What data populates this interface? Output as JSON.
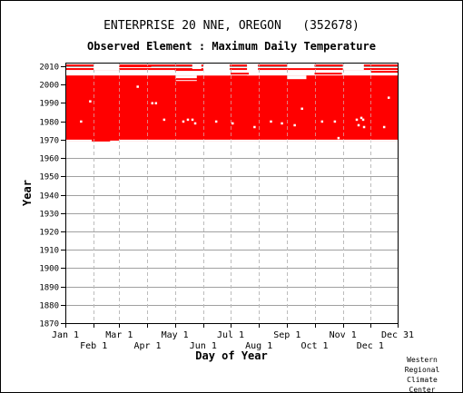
{
  "chart_data": {
    "type": "heatmap",
    "title": "ENTERPRISE 20 NNE, OREGON   (352678)",
    "subtitle": "Observed Element : Maximum Daily Temperature",
    "xlabel": "Day of Year",
    "ylabel": "Year",
    "xlim": [
      1,
      365
    ],
    "ylim": [
      1870,
      2012
    ],
    "x_ticks_top_row": [
      {
        "label": "Jan 1",
        "day": 1
      },
      {
        "label": "Mar 1",
        "day": 60
      },
      {
        "label": "May 1",
        "day": 121
      },
      {
        "label": "Jul 1",
        "day": 182
      },
      {
        "label": "Sep 1",
        "day": 244
      },
      {
        "label": "Nov 1",
        "day": 305
      },
      {
        "label": "Dec 31",
        "day": 365
      }
    ],
    "x_ticks_bottom_row": [
      {
        "label": "Feb 1",
        "day": 32
      },
      {
        "label": "Apr 1",
        "day": 91
      },
      {
        "label": "Jun 1",
        "day": 152
      },
      {
        "label": "Aug 1",
        "day": 213
      },
      {
        "label": "Oct 1",
        "day": 274
      },
      {
        "label": "Dec 1",
        "day": 335
      }
    ],
    "y_ticks": [
      1870,
      1880,
      1890,
      1900,
      1910,
      1920,
      1930,
      1940,
      1950,
      1960,
      1970,
      1980,
      1990,
      2000,
      2010
    ],
    "grid": true,
    "data_color": "#ff0000",
    "grid_color": "#a0a0a0",
    "blocks": [
      {
        "x0": 1,
        "x1": 365,
        "y0": 1969,
        "y1": 2005
      },
      {
        "x0": 1,
        "x1": 365,
        "y0": 2008,
        "y1": 2009
      },
      {
        "x0": 1,
        "x1": 365,
        "y0": 2010,
        "y1": 2011
      }
    ],
    "gaps": [
      {
        "x0": 1,
        "x1": 30,
        "y0": 1969,
        "y1": 1970
      },
      {
        "x0": 50,
        "x1": 365,
        "y0": 1969,
        "y1": 1970
      },
      {
        "x0": 32,
        "x1": 60,
        "y0": 2008,
        "y1": 2011
      },
      {
        "x0": 140,
        "x1": 150,
        "y0": 2005,
        "y1": 2011
      },
      {
        "x0": 200,
        "x1": 212,
        "y0": 2005,
        "y1": 2011
      },
      {
        "x0": 122,
        "x1": 145,
        "y0": 2002,
        "y1": 2005
      },
      {
        "x0": 152,
        "x1": 181,
        "y0": 2005,
        "y1": 2011
      },
      {
        "x0": 244,
        "x1": 274,
        "y0": 2009,
        "y1": 2011
      },
      {
        "x0": 244,
        "x1": 265,
        "y0": 2003,
        "y1": 2005
      },
      {
        "x0": 305,
        "x1": 328,
        "y0": 2008,
        "y1": 2011
      }
    ],
    "extra_lines": [
      {
        "x0": 32,
        "x1": 60,
        "y": 1970
      },
      {
        "x0": 122,
        "x1": 146,
        "y": 2003
      },
      {
        "x0": 274,
        "x1": 304,
        "y": 2006
      },
      {
        "x0": 336,
        "x1": 365,
        "y": 2007
      },
      {
        "x0": 182,
        "x1": 202,
        "y": 2006
      },
      {
        "x0": 60,
        "x1": 81,
        "y": 2000
      },
      {
        "x0": 60,
        "x1": 95,
        "y": 2010
      },
      {
        "x0": 121,
        "x1": 152,
        "y": 2008
      }
    ],
    "holes": [
      {
        "day": 28,
        "year": 1991
      },
      {
        "day": 80,
        "year": 1999
      },
      {
        "day": 96,
        "year": 1990
      },
      {
        "day": 100,
        "year": 1990
      },
      {
        "day": 109,
        "year": 1981
      },
      {
        "day": 130,
        "year": 1980
      },
      {
        "day": 135,
        "year": 1981
      },
      {
        "day": 140,
        "year": 1981
      },
      {
        "day": 143,
        "year": 1979
      },
      {
        "day": 166,
        "year": 1980
      },
      {
        "day": 184,
        "year": 1979
      },
      {
        "day": 208,
        "year": 1977
      },
      {
        "day": 226,
        "year": 1980
      },
      {
        "day": 238,
        "year": 1979
      },
      {
        "day": 252,
        "year": 1978
      },
      {
        "day": 260,
        "year": 1987
      },
      {
        "day": 282,
        "year": 1980
      },
      {
        "day": 296,
        "year": 1980
      },
      {
        "day": 320,
        "year": 1981
      },
      {
        "day": 322,
        "year": 1978
      },
      {
        "day": 325,
        "year": 1982
      },
      {
        "day": 328,
        "year": 1977
      },
      {
        "day": 327,
        "year": 1981
      },
      {
        "day": 355,
        "year": 1993
      },
      {
        "day": 350,
        "year": 1977
      },
      {
        "day": 18,
        "year": 1980
      },
      {
        "day": 300,
        "year": 1971
      }
    ]
  },
  "credit": [
    "Western",
    "Regional",
    "Climate",
    "Center"
  ]
}
